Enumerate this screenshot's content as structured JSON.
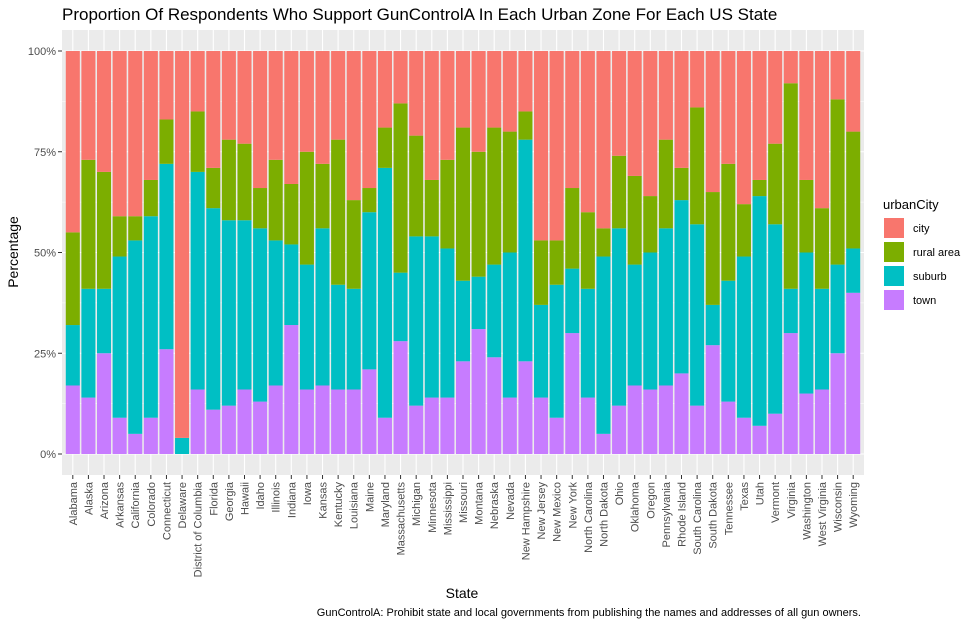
{
  "chart_data": {
    "type": "bar",
    "stacked": true,
    "title": "Proportion Of Respondents Who Support GunControlA In Each Urban Zone For Each US State",
    "xlabel": "State",
    "ylabel": "Percentage",
    "caption": "GunControlA: Prohibit state and local governments from publishing the names and addresses of all gun owners.",
    "ylim": [
      0,
      1
    ],
    "yticks": [
      "0%",
      "25%",
      "50%",
      "75%",
      "100%"
    ],
    "ytick_values": [
      0,
      0.25,
      0.5,
      0.75,
      1.0
    ],
    "legend": {
      "title": "urbanCity",
      "position": "right"
    },
    "categories": [
      "Alabama",
      "Alaska",
      "Arizona",
      "Arkansas",
      "California",
      "Colorado",
      "Connecticut",
      "Delaware",
      "District of Columbia",
      "Florida",
      "Georgia",
      "Hawaii",
      "Idaho",
      "Illinois",
      "Indiana",
      "Iowa",
      "Kansas",
      "Kentucky",
      "Louisiana",
      "Maine",
      "Maryland",
      "Massachusetts",
      "Michigan",
      "Minnesota",
      "Mississippi",
      "Missouri",
      "Montana",
      "Nebraska",
      "Nevada",
      "New Hampshire",
      "New Jersey",
      "New Mexico",
      "New York",
      "North Carolina",
      "North Dakota",
      "Ohio",
      "Oklahoma",
      "Oregon",
      "Pennsylvania",
      "Rhode Island",
      "South Carolina",
      "South Dakota",
      "Tennessee",
      "Texas",
      "Utah",
      "Vermont",
      "Virginia",
      "Washington",
      "West Virginia",
      "Wisconsin",
      "Wyoming"
    ],
    "series": [
      {
        "name": "city",
        "color": "#F8766D",
        "values": [
          0.45,
          0.27,
          0.3,
          0.41,
          0.41,
          0.32,
          0.17,
          0.96,
          0.15,
          0.29,
          0.22,
          0.23,
          0.34,
          0.27,
          0.33,
          0.25,
          0.28,
          0.22,
          0.37,
          0.34,
          0.19,
          0.13,
          0.21,
          0.32,
          0.27,
          0.19,
          0.25,
          0.19,
          0.2,
          0.15,
          0.47,
          0.47,
          0.34,
          0.4,
          0.44,
          0.26,
          0.31,
          0.36,
          0.22,
          0.29,
          0.14,
          0.35,
          0.28,
          0.38,
          0.32,
          0.23,
          0.08,
          0.32,
          0.39,
          0.12,
          0.2
        ]
      },
      {
        "name": "rural area",
        "color": "#7CAE00",
        "values": [
          0.23,
          0.32,
          0.29,
          0.1,
          0.06,
          0.09,
          0.11,
          0.0,
          0.15,
          0.1,
          0.2,
          0.19,
          0.1,
          0.2,
          0.15,
          0.28,
          0.16,
          0.36,
          0.22,
          0.06,
          0.1,
          0.42,
          0.25,
          0.14,
          0.22,
          0.38,
          0.31,
          0.34,
          0.3,
          0.07,
          0.16,
          0.11,
          0.2,
          0.19,
          0.07,
          0.18,
          0.22,
          0.14,
          0.22,
          0.08,
          0.29,
          0.28,
          0.29,
          0.13,
          0.04,
          0.2,
          0.51,
          0.18,
          0.2,
          0.41,
          0.29
        ]
      },
      {
        "name": "suburb",
        "color": "#00BFC4",
        "values": [
          0.15,
          0.27,
          0.16,
          0.4,
          0.48,
          0.5,
          0.46,
          0.04,
          0.54,
          0.5,
          0.46,
          0.42,
          0.43,
          0.36,
          0.2,
          0.31,
          0.39,
          0.26,
          0.25,
          0.39,
          0.62,
          0.17,
          0.42,
          0.4,
          0.37,
          0.2,
          0.13,
          0.23,
          0.36,
          0.55,
          0.23,
          0.33,
          0.16,
          0.27,
          0.44,
          0.44,
          0.3,
          0.34,
          0.39,
          0.43,
          0.45,
          0.1,
          0.3,
          0.4,
          0.57,
          0.47,
          0.11,
          0.35,
          0.25,
          0.22,
          0.11
        ]
      },
      {
        "name": "town",
        "color": "#C77CFF",
        "values": [
          0.17,
          0.14,
          0.25,
          0.09,
          0.05,
          0.09,
          0.26,
          0.0,
          0.16,
          0.11,
          0.12,
          0.16,
          0.13,
          0.17,
          0.32,
          0.16,
          0.17,
          0.16,
          0.16,
          0.21,
          0.09,
          0.28,
          0.12,
          0.14,
          0.14,
          0.23,
          0.31,
          0.24,
          0.14,
          0.23,
          0.14,
          0.09,
          0.3,
          0.14,
          0.05,
          0.12,
          0.17,
          0.16,
          0.17,
          0.2,
          0.12,
          0.27,
          0.13,
          0.09,
          0.07,
          0.1,
          0.3,
          0.15,
          0.16,
          0.25,
          0.4
        ]
      }
    ]
  }
}
